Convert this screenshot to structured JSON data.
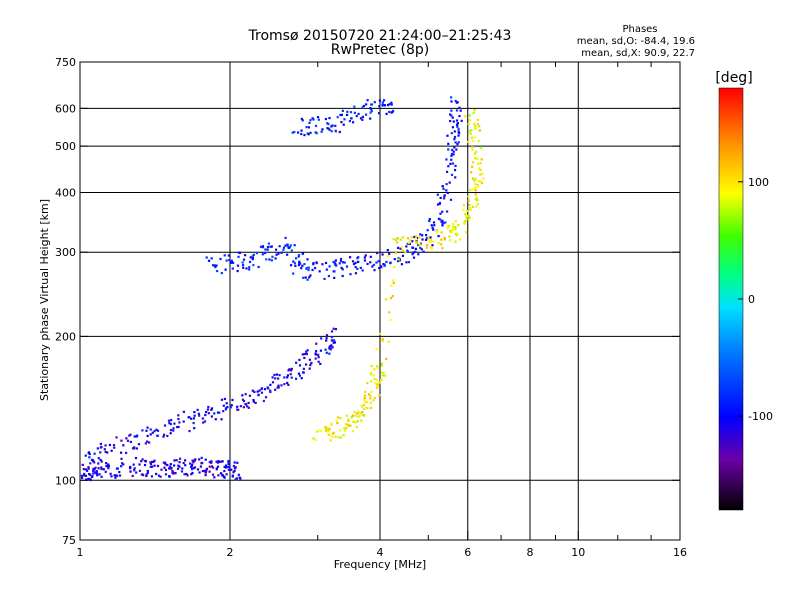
{
  "chart_data": {
    "type": "scatter",
    "title": "Tromsø 20150720 21:24:00–21:25:43",
    "subtitle": "RwPretec (8p)",
    "xlabel": "Frequency [MHz]",
    "ylabel": "Stationary phase Virtual Height [km]",
    "x_scale": "log",
    "y_scale": "log",
    "xlim": [
      1,
      16
    ],
    "ylim": [
      75,
      750
    ],
    "x_ticks": [
      1,
      2,
      4,
      6,
      8,
      10,
      16
    ],
    "x_tick_labels": [
      "1",
      "2",
      "4",
      "6",
      "8",
      "10",
      "16"
    ],
    "x_grid": [
      2,
      4,
      6,
      8,
      10
    ],
    "x_minor": [
      3,
      5,
      7,
      9,
      12,
      14
    ],
    "y_ticks": [
      75,
      100,
      200,
      300,
      400,
      500,
      600,
      750
    ],
    "y_tick_labels": [
      "75",
      "100",
      "200",
      "300",
      "400",
      "500",
      "600",
      "750"
    ],
    "y_grid": [
      100,
      200,
      300,
      400,
      500,
      600
    ],
    "grid": true,
    "legend": {
      "title": "Phases",
      "line1": "mean, sd,O: -84.4, 19.6",
      "line2": "mean, sd,X:  90.9, 22.7"
    },
    "colorbar": {
      "label": "[deg]",
      "range": [
        -180,
        180
      ],
      "ticks": [
        100,
        0,
        -100
      ],
      "tick_labels": [
        "100",
        "0",
        "-100"
      ],
      "colors": [
        "#000000",
        "#6a00a8",
        "#0000ff",
        "#0080ff",
        "#00e0ff",
        "#00ff80",
        "#40ff00",
        "#ffff00",
        "#ff9900",
        "#ff0000"
      ]
    },
    "series": [
      {
        "description_role": "o-trace",
        "color_phase": -110,
        "points": [
          [
            1.0,
            103
          ],
          [
            1.05,
            104
          ],
          [
            1.1,
            105
          ],
          [
            1.2,
            106
          ],
          [
            1.3,
            107
          ],
          [
            1.4,
            106
          ],
          [
            1.5,
            106
          ],
          [
            1.6,
            107
          ],
          [
            1.7,
            107
          ],
          [
            1.8,
            106
          ],
          [
            1.9,
            106
          ],
          [
            2.0,
            105
          ],
          [
            2.05,
            105
          ]
        ]
      },
      {
        "description_role": "o-trace-lower-cloud",
        "color_phase": -105,
        "points": [
          [
            1.0,
            110
          ],
          [
            1.1,
            115
          ],
          [
            1.25,
            120
          ],
          [
            1.4,
            125
          ],
          [
            1.55,
            130
          ],
          [
            1.7,
            135
          ],
          [
            1.9,
            140
          ],
          [
            2.1,
            145
          ],
          [
            2.3,
            150
          ],
          [
            2.5,
            160
          ],
          [
            2.7,
            170
          ],
          [
            2.9,
            180
          ],
          [
            3.1,
            190
          ],
          [
            3.3,
            200
          ]
        ]
      },
      {
        "description_role": "o-trace-upper",
        "color_phase": -95,
        "points": [
          [
            3.0,
            275
          ],
          [
            3.3,
            278
          ],
          [
            3.6,
            282
          ],
          [
            4.0,
            288
          ],
          [
            4.4,
            296
          ],
          [
            4.7,
            305
          ],
          [
            5.0,
            325
          ],
          [
            5.3,
            360
          ],
          [
            5.5,
            420
          ],
          [
            5.6,
            500
          ],
          [
            5.65,
            560
          ],
          [
            5.7,
            620
          ]
        ]
      },
      {
        "description_role": "x-trace",
        "color_phase": 95,
        "points": [
          [
            3.0,
            125
          ],
          [
            3.2,
            127
          ],
          [
            3.4,
            130
          ],
          [
            3.6,
            135
          ],
          [
            3.8,
            145
          ],
          [
            3.9,
            160
          ],
          [
            4.0,
            175
          ],
          [
            4.3,
            305
          ],
          [
            4.8,
            315
          ],
          [
            5.3,
            320
          ],
          [
            5.7,
            330
          ],
          [
            6.0,
            360
          ],
          [
            6.2,
            400
          ],
          [
            6.3,
            450
          ],
          [
            6.2,
            520
          ],
          [
            6.0,
            580
          ]
        ]
      },
      {
        "description_role": "spread-f-cloud",
        "color_phase": -85,
        "points": [
          [
            1.8,
            280
          ],
          [
            2.0,
            285
          ],
          [
            2.2,
            290
          ],
          [
            2.4,
            300
          ],
          [
            2.6,
            310
          ],
          [
            2.8,
            270
          ],
          [
            2.9,
            295
          ]
        ]
      },
      {
        "description_role": "sporadic-upper",
        "color_phase": -90,
        "points": [
          [
            2.7,
            545
          ],
          [
            3.0,
            550
          ],
          [
            3.3,
            560
          ],
          [
            3.6,
            580
          ],
          [
            4.0,
            610
          ],
          [
            4.2,
            600
          ]
        ]
      }
    ]
  }
}
